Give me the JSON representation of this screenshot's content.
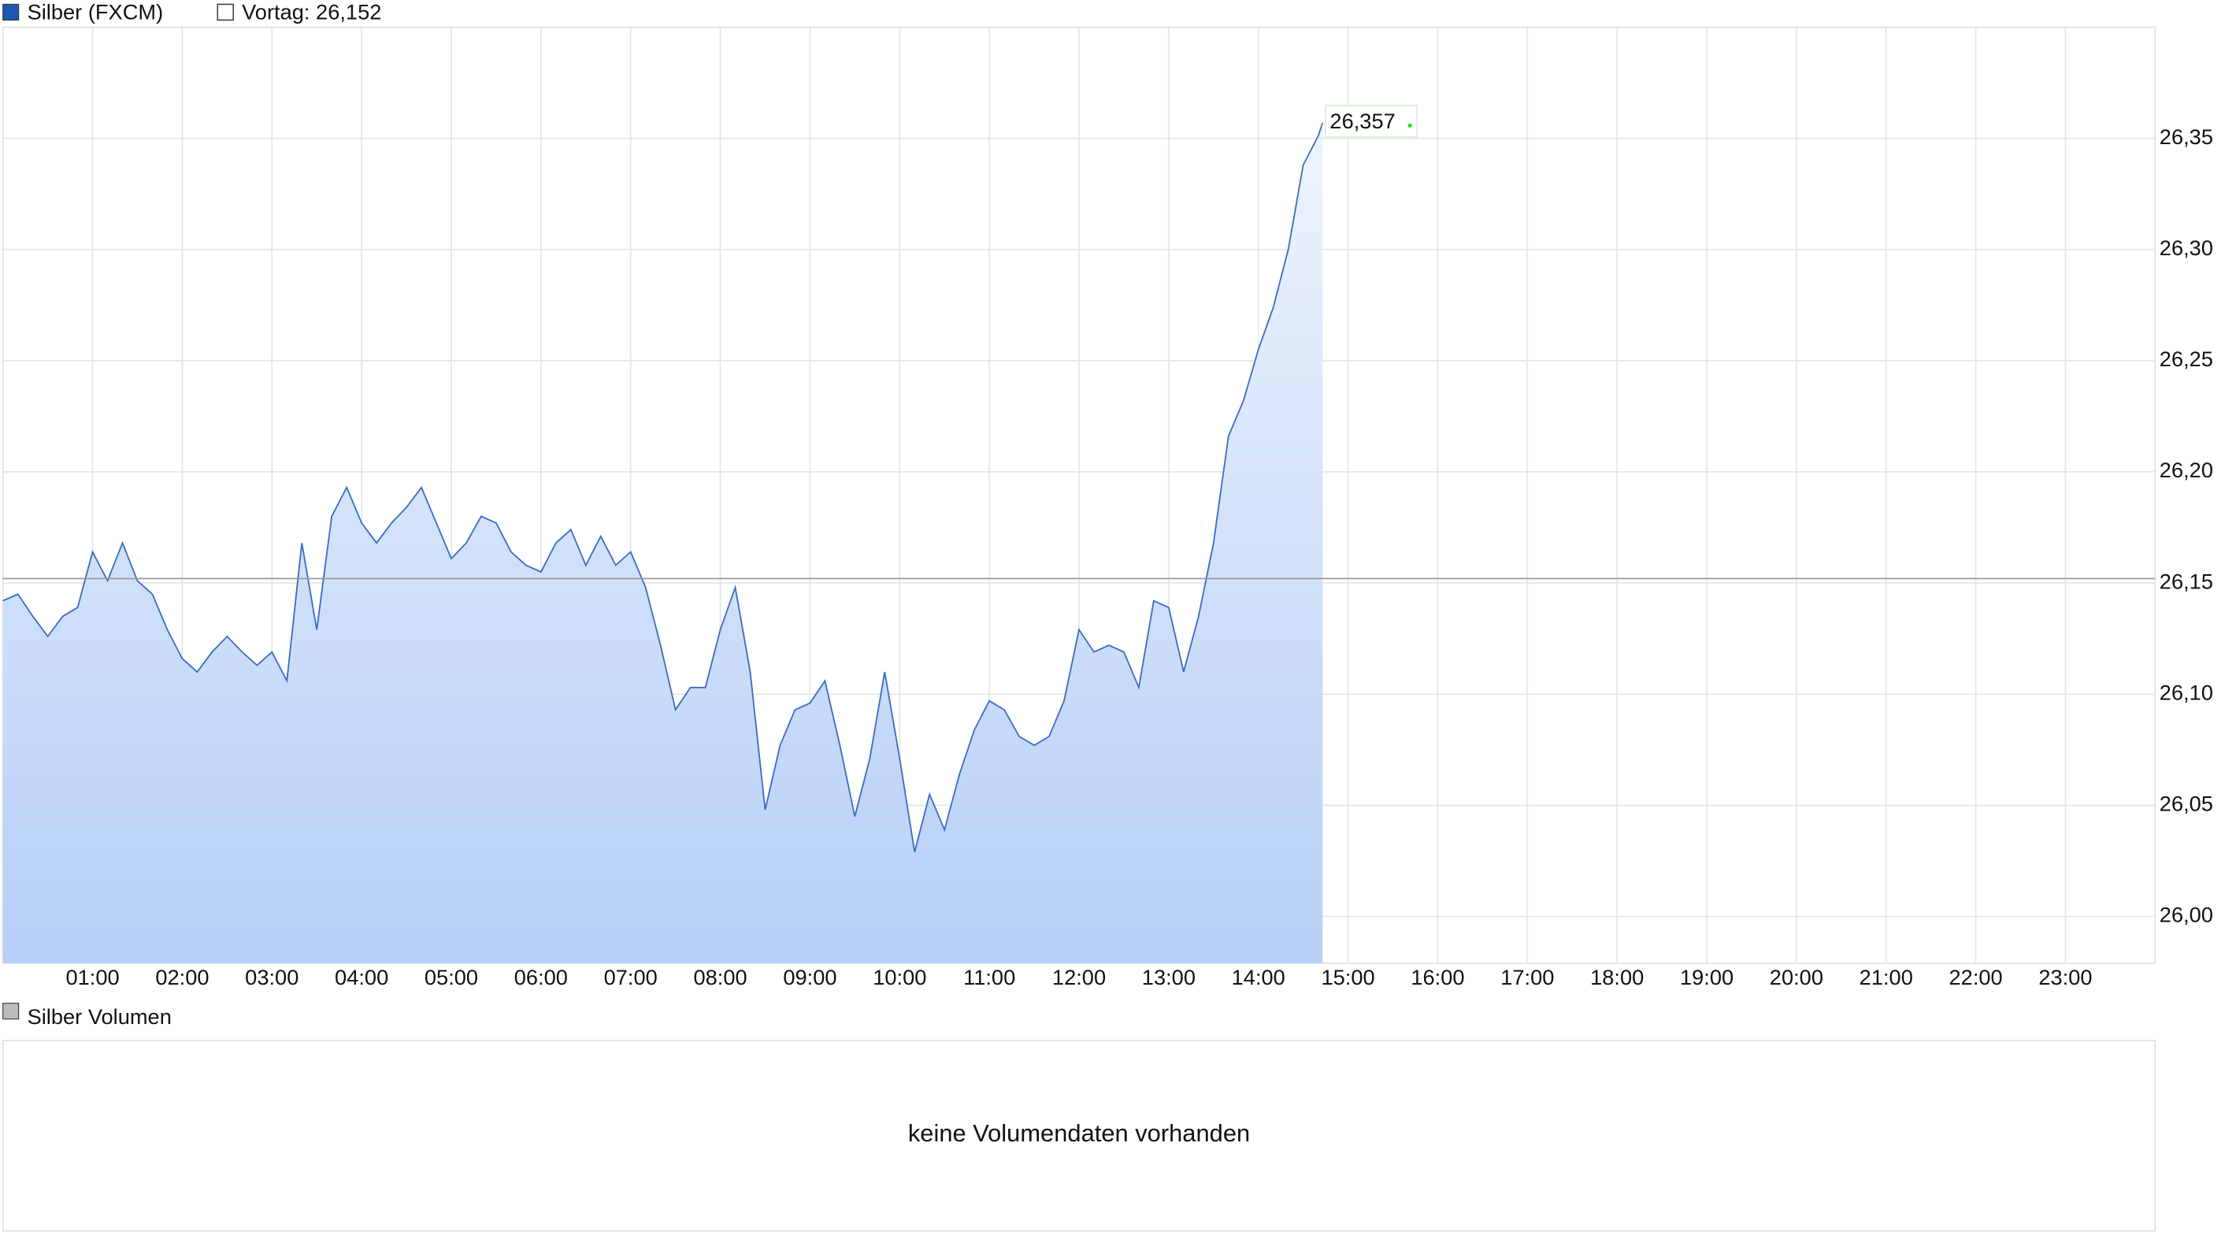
{
  "chart_data": {
    "type": "area",
    "legend": [
      "Silber (FXCM)",
      "Vortag: 26,152"
    ],
    "series": [
      {
        "name": "Silber (FXCM)",
        "color": "#3a6cc4",
        "values": [
          26.142,
          26.145,
          26.135,
          26.126,
          26.135,
          26.139,
          26.164,
          26.151,
          26.168,
          26.151,
          26.145,
          26.129,
          26.116,
          26.11,
          26.119,
          26.126,
          26.119,
          26.113,
          26.119,
          26.106,
          26.168,
          26.129,
          26.18,
          26.193,
          26.177,
          26.168,
          26.177,
          26.184,
          26.193,
          26.177,
          26.161,
          26.168,
          26.18,
          26.177,
          26.164,
          26.158,
          26.155,
          26.168,
          26.174,
          26.158,
          26.171,
          26.158,
          26.164,
          26.148,
          26.122,
          26.093,
          26.103,
          26.103,
          26.129,
          26.148,
          26.11,
          26.048,
          26.077,
          26.093,
          26.096,
          26.106,
          26.077,
          26.045,
          26.071,
          26.11,
          26.071,
          26.029,
          26.055,
          26.039,
          26.064,
          26.084,
          26.097,
          26.093,
          26.081,
          26.077,
          26.081,
          26.097,
          26.129,
          26.119,
          26.122,
          26.119,
          26.103,
          26.142,
          26.139,
          26.11,
          26.135,
          26.168,
          26.216,
          26.232,
          26.255,
          26.274,
          26.3,
          26.338,
          26.351,
          26.357
        ],
        "value_labels": [
          null,
          null,
          null,
          null,
          null,
          null,
          null,
          null,
          null,
          null,
          null,
          null,
          null,
          null,
          null,
          null,
          null,
          null,
          null,
          null,
          null,
          null,
          null,
          null,
          null,
          null,
          null,
          null,
          null,
          null,
          null,
          null,
          null,
          null,
          null,
          null,
          null,
          null,
          null,
          null,
          null,
          null,
          null,
          null,
          null,
          null,
          null,
          null,
          null,
          null,
          null,
          null,
          null,
          null,
          null,
          null,
          null,
          null,
          null,
          null,
          null,
          null,
          null,
          null,
          null,
          null,
          null,
          null,
          null,
          null,
          null,
          null,
          null,
          null,
          null,
          null,
          null,
          null,
          null,
          null,
          null,
          null,
          null,
          null,
          null,
          null,
          null,
          null,
          null,
          "26,357"
        ]
      }
    ],
    "x": [
      "00:00",
      "00:10",
      "00:20",
      "00:30",
      "00:40",
      "00:50",
      "01:00",
      "01:10",
      "01:20",
      "01:30",
      "01:40",
      "01:50",
      "02:00",
      "02:10",
      "02:20",
      "02:30",
      "02:40",
      "02:50",
      "03:00",
      "03:10",
      "03:20",
      "03:30",
      "03:40",
      "03:50",
      "04:00",
      "04:10",
      "04:20",
      "04:30",
      "04:40",
      "04:50",
      "05:00",
      "05:10",
      "05:20",
      "05:30",
      "05:40",
      "05:50",
      "06:00",
      "06:10",
      "06:20",
      "06:30",
      "06:40",
      "06:50",
      "07:00",
      "07:10",
      "07:20",
      "07:30",
      "07:40",
      "07:50",
      "08:00",
      "08:10",
      "08:20",
      "08:30",
      "08:40",
      "08:50",
      "09:00",
      "09:10",
      "09:20",
      "09:30",
      "09:40",
      "09:50",
      "10:00",
      "10:10",
      "10:20",
      "10:30",
      "10:40",
      "10:50",
      "11:00",
      "11:10",
      "11:20",
      "11:30",
      "11:40",
      "11:50",
      "12:00",
      "12:10",
      "12:20",
      "12:30",
      "12:40",
      "12:50",
      "13:00",
      "13:10",
      "13:20",
      "13:30",
      "13:40",
      "13:50",
      "14:00",
      "14:10",
      "14:20",
      "14:30",
      "14:40",
      "14:43"
    ],
    "xlim": [
      "00:00",
      "24:00"
    ],
    "xticks": [
      "01:00",
      "02:00",
      "03:00",
      "04:00",
      "05:00",
      "06:00",
      "07:00",
      "08:00",
      "09:00",
      "10:00",
      "11:00",
      "12:00",
      "13:00",
      "14:00",
      "15:00",
      "16:00",
      "17:00",
      "18:00",
      "19:00",
      "20:00",
      "21:00",
      "22:00",
      "23:00"
    ],
    "ylim": [
      25.979,
      26.4
    ],
    "yticks": [
      {
        "value": 26.0,
        "label": "26,00"
      },
      {
        "value": 26.05,
        "label": "26,05"
      },
      {
        "value": 26.1,
        "label": "26,10"
      },
      {
        "value": 26.15,
        "label": "26,15"
      },
      {
        "value": 26.2,
        "label": "26,20"
      },
      {
        "value": 26.25,
        "label": "26,25"
      },
      {
        "value": 26.3,
        "label": "26,30"
      },
      {
        "value": 26.35,
        "label": "26,35"
      }
    ],
    "reference": {
      "name": "Vortag: 26,152",
      "value": 26.152,
      "color": "#999999"
    },
    "grid": true
  },
  "volume_panel": {
    "title": "Silber Volumen",
    "message": "keine Volumendaten vorhanden"
  }
}
